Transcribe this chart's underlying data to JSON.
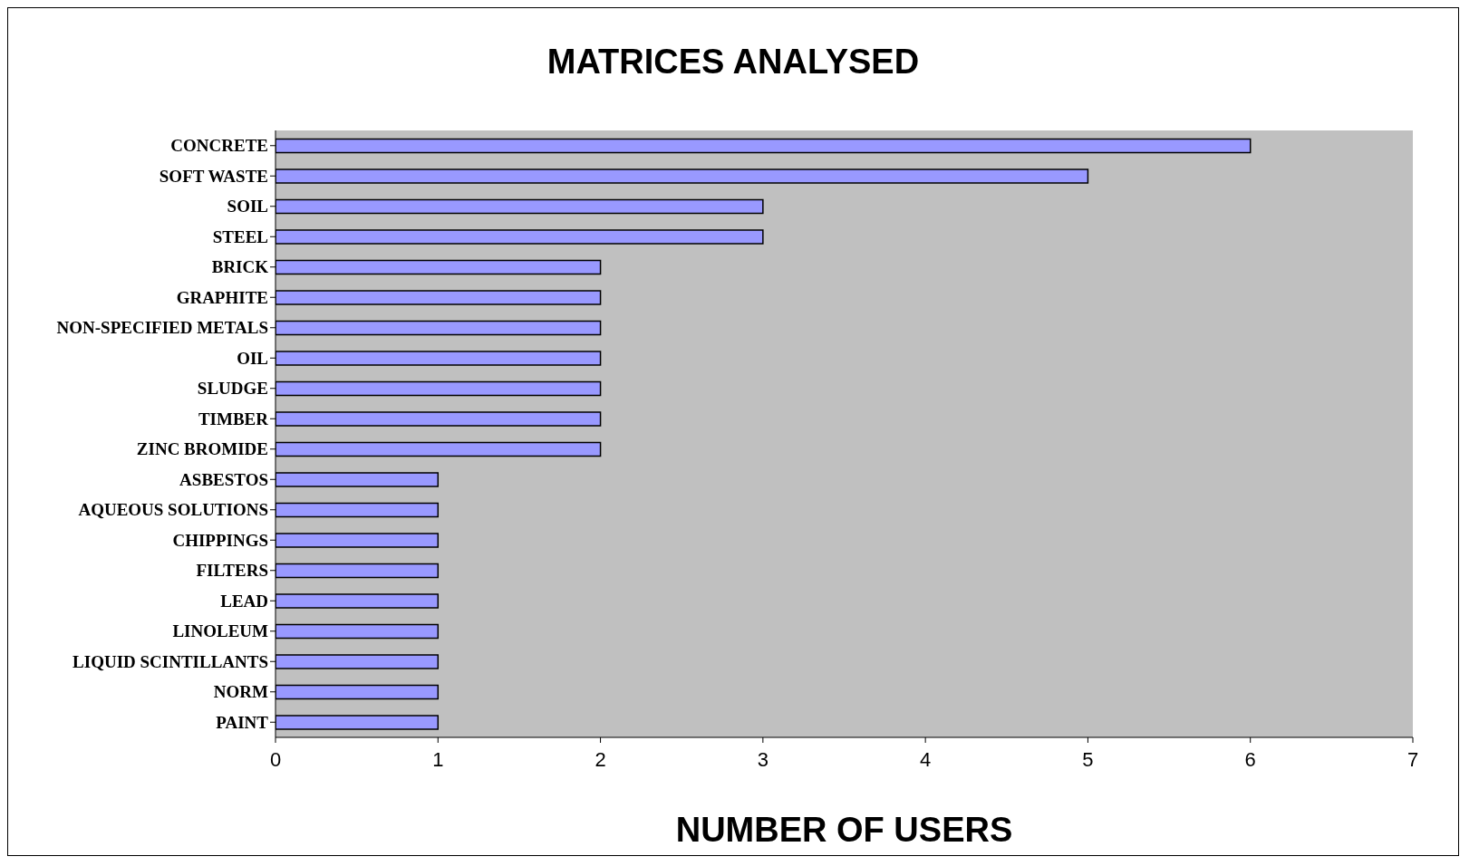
{
  "chart_data": {
    "type": "bar",
    "orientation": "horizontal",
    "title": "MATRICES ANALYSED",
    "xlabel": "NUMBER OF USERS",
    "categories": [
      "CONCRETE",
      "SOFT WASTE",
      "SOIL",
      "STEEL",
      "BRICK",
      "GRAPHITE",
      "NON-SPECIFIED METALS",
      "OIL",
      "SLUDGE",
      "TIMBER",
      "ZINC BROMIDE",
      "ASBESTOS",
      "AQUEOUS SOLUTIONS",
      "CHIPPINGS",
      "FILTERS",
      "LEAD",
      "LINOLEUM",
      "LIQUID SCINTILLANTS",
      "NORM",
      "PAINT"
    ],
    "values": [
      6,
      5,
      3,
      3,
      2,
      2,
      2,
      2,
      2,
      2,
      2,
      1,
      1,
      1,
      1,
      1,
      1,
      1,
      1,
      1
    ],
    "color": "#9999ff",
    "xlim": [
      0,
      7
    ],
    "xticks": [
      0,
      1,
      2,
      3,
      4,
      5,
      6,
      7
    ],
    "grid": false,
    "legend": false
  }
}
